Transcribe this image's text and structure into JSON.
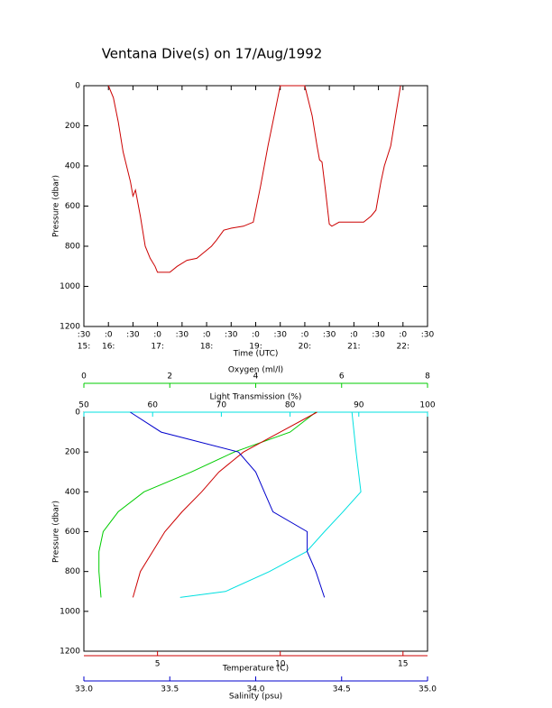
{
  "chart_data": [
    {
      "type": "line",
      "title": "Ventana Dive(s) on 17/Aug/1992",
      "xlabel": "Time (UTC)",
      "ylabel": "Pressure (dbar)",
      "xlim": [
        15.5,
        22.5
      ],
      "xticks": [
        {
          "value": 15.5,
          "label": ":30"
        },
        {
          "value": 16,
          "label": ":0"
        },
        {
          "value": 16.5,
          "label": ":30"
        },
        {
          "value": 17,
          "label": ":0"
        },
        {
          "value": 17.5,
          "label": ":30"
        },
        {
          "value": 18,
          "label": ":0"
        },
        {
          "value": 18.5,
          "label": ":30"
        },
        {
          "value": 19,
          "label": ":0"
        },
        {
          "value": 19.5,
          "label": ":30"
        },
        {
          "value": 20,
          "label": ":0"
        },
        {
          "value": 20.5,
          "label": ":30"
        },
        {
          "value": 21,
          "label": ":0"
        },
        {
          "value": 21.5,
          "label": ":30"
        },
        {
          "value": 22,
          "label": ":0"
        },
        {
          "value": 22.5,
          "label": ":30"
        }
      ],
      "xticks_hour": [
        {
          "value": 15.5,
          "label": "15:"
        },
        {
          "value": 16,
          "label": "16:"
        },
        {
          "value": 17,
          "label": "17:"
        },
        {
          "value": 18,
          "label": "18:"
        },
        {
          "value": 19,
          "label": "19:"
        },
        {
          "value": 20,
          "label": "20:"
        },
        {
          "value": 21,
          "label": "21:"
        },
        {
          "value": 22,
          "label": "22:"
        }
      ],
      "ylim": [
        0,
        1200
      ],
      "yticks": [
        0,
        200,
        400,
        600,
        800,
        1000,
        1200
      ],
      "y_inverted": true,
      "series": [
        {
          "color": "#cc0000",
          "x": [
            16.0,
            16.1,
            16.2,
            16.3,
            16.45,
            16.5,
            16.55,
            16.65,
            16.75,
            16.85,
            16.95,
            17.0,
            17.25,
            17.4,
            17.6,
            17.8,
            17.95,
            18.1,
            18.2,
            18.35,
            18.5,
            18.75,
            18.95,
            19.1,
            19.25,
            19.4,
            19.5,
            20.0,
            20.15,
            20.25,
            20.3,
            20.35,
            20.42,
            20.5,
            20.55,
            20.7,
            21.2,
            21.35,
            21.45,
            21.55,
            21.62,
            21.75,
            21.85,
            21.95
          ],
          "values": [
            0,
            60,
            180,
            330,
            480,
            550,
            520,
            650,
            800,
            860,
            900,
            930,
            930,
            900,
            870,
            860,
            830,
            800,
            770,
            720,
            710,
            700,
            680,
            500,
            300,
            120,
            0,
            0,
            150,
            300,
            370,
            380,
            520,
            690,
            700,
            680,
            680,
            650,
            620,
            480,
            400,
            300,
            150,
            0
          ]
        }
      ]
    },
    {
      "type": "line",
      "ylabel": "Pressure (dbar)",
      "ylim": [
        0,
        1200
      ],
      "yticks": [
        0,
        200,
        400,
        600,
        800,
        1000,
        1200
      ],
      "y_inverted": true,
      "xlabel": "Temperature (C)",
      "xcolor": "#cc0000",
      "xlim": [
        2,
        16
      ],
      "xticks": [
        5,
        10,
        15
      ],
      "x2label": "Salinity (psu)",
      "x2color": "#0000cc",
      "x2lim": [
        33,
        35
      ],
      "x2ticks": [
        {
          "value": 33,
          "label": "33.0"
        },
        33.5,
        {
          "value": 34,
          "label": "34.0"
        },
        34.5,
        {
          "value": 35,
          "label": "35.0"
        }
      ],
      "x3label": "Light Transmission (%)",
      "x3color": "#00e0e0",
      "x3lim": [
        50,
        100
      ],
      "x3ticks": [
        50,
        60,
        70,
        80,
        90,
        100
      ],
      "x4label": "Oxygen (ml/l)",
      "x4color": "#00cc00",
      "x4lim": [
        0,
        8
      ],
      "x4ticks": [
        0,
        2,
        4,
        6,
        8
      ],
      "series": [
        {
          "axis": "x4",
          "color": "#00cc00",
          "x": [
            5.4,
            4.8,
            3.5,
            2.5,
            1.4,
            0.8,
            0.45,
            0.35,
            0.35,
            0.4
          ],
          "values": [
            0,
            100,
            200,
            300,
            400,
            500,
            600,
            700,
            800,
            930
          ]
        },
        {
          "axis": "x3",
          "color": "#00e0e0",
          "x": [
            89,
            89.6,
            90.3,
            87.7,
            85,
            82.4,
            77,
            70.6,
            64
          ],
          "values": [
            0,
            200,
            400,
            500,
            600,
            700,
            800,
            900,
            930
          ]
        },
        {
          "axis": "x",
          "color": "#cc0000",
          "x": [
            11.5,
            10,
            8.5,
            7.5,
            6.8,
            6,
            5.3,
            4.8,
            4.3,
            4
          ],
          "values": [
            0,
            100,
            200,
            300,
            400,
            500,
            600,
            700,
            800,
            930
          ]
        },
        {
          "axis": "x2",
          "color": "#0000cc",
          "x": [
            33.27,
            33.45,
            33.9,
            34,
            34.05,
            34.1,
            34.3,
            34.3,
            34.35,
            34.4
          ],
          "values": [
            0,
            100,
            200,
            300,
            400,
            500,
            600,
            700,
            800,
            930
          ]
        }
      ]
    }
  ]
}
